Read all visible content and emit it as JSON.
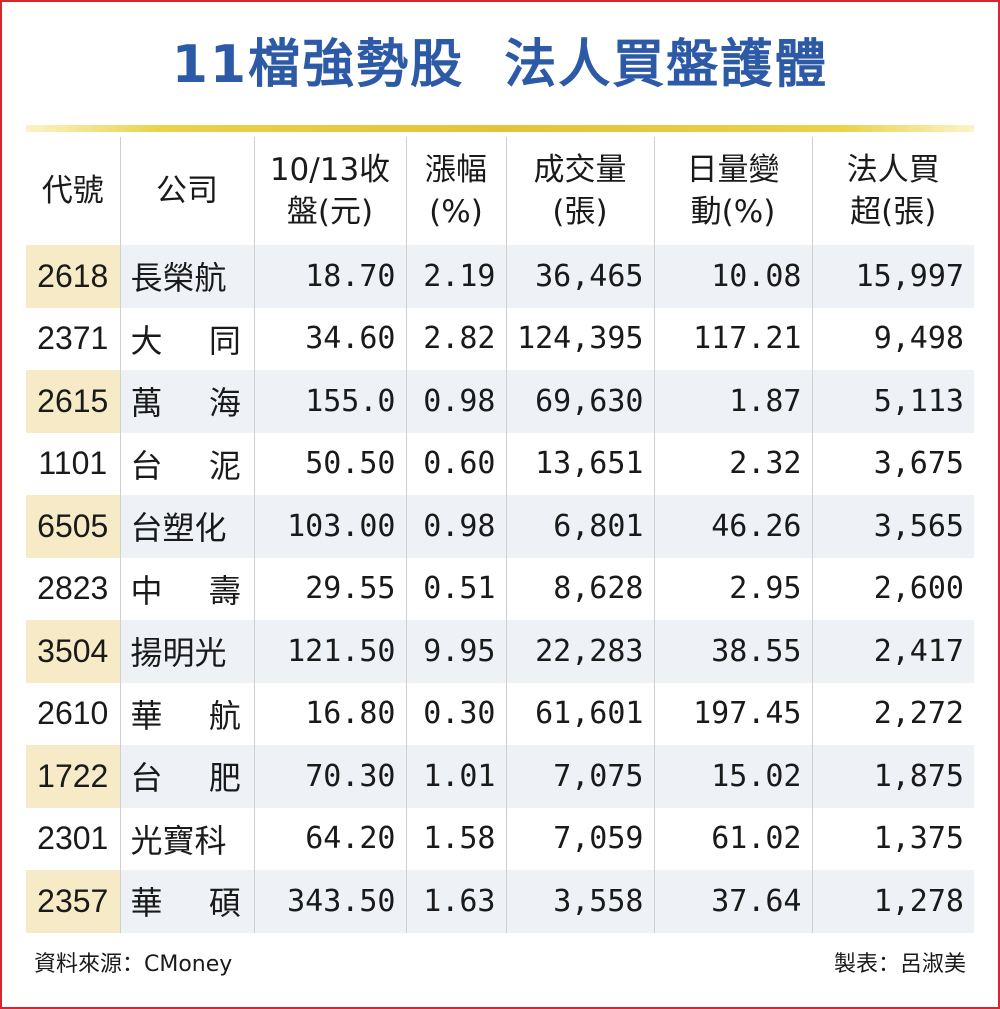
{
  "title": "11檔強勢股  法人買盤護體",
  "headers": [
    "代號",
    "公司",
    "10/13收\n盤(元)",
    "漲幅\n(%)",
    "成交量\n(張)",
    "日量變\n動(%)",
    "法人買\n超(張)"
  ],
  "chart_data": {
    "type": "table",
    "title": "11檔強勢股  法人買盤護體",
    "columns": [
      "代號",
      "公司",
      "10/13收盤(元)",
      "漲幅(%)",
      "成交量(張)",
      "日量變動(%)",
      "法人買超(張)"
    ],
    "rows": [
      {
        "code": "2618",
        "company": "長榮航",
        "close": "18.70",
        "change": "2.19",
        "volume": "36,465",
        "vol_change": "10.08",
        "net_buy": "15,997"
      },
      {
        "code": "2371",
        "company": "大同",
        "close": "34.60",
        "change": "2.82",
        "volume": "124,395",
        "vol_change": "117.21",
        "net_buy": "9,498"
      },
      {
        "code": "2615",
        "company": "萬海",
        "close": "155.0",
        "change": "0.98",
        "volume": "69,630",
        "vol_change": "1.87",
        "net_buy": "5,113"
      },
      {
        "code": "1101",
        "company": "台泥",
        "close": "50.50",
        "change": "0.60",
        "volume": "13,651",
        "vol_change": "2.32",
        "net_buy": "3,675"
      },
      {
        "code": "6505",
        "company": "台塑化",
        "close": "103.00",
        "change": "0.98",
        "volume": "6,801",
        "vol_change": "46.26",
        "net_buy": "3,565"
      },
      {
        "code": "2823",
        "company": "中壽",
        "close": "29.55",
        "change": "0.51",
        "volume": "8,628",
        "vol_change": "2.95",
        "net_buy": "2,600"
      },
      {
        "code": "3504",
        "company": "揚明光",
        "close": "121.50",
        "change": "9.95",
        "volume": "22,283",
        "vol_change": "38.55",
        "net_buy": "2,417"
      },
      {
        "code": "2610",
        "company": "華航",
        "close": "16.80",
        "change": "0.30",
        "volume": "61,601",
        "vol_change": "197.45",
        "net_buy": "2,272"
      },
      {
        "code": "1722",
        "company": "台肥",
        "close": "70.30",
        "change": "1.01",
        "volume": "7,075",
        "vol_change": "15.02",
        "net_buy": "1,875"
      },
      {
        "code": "2301",
        "company": "光寶科",
        "close": "64.20",
        "change": "1.58",
        "volume": "7,059",
        "vol_change": "61.02",
        "net_buy": "1,375"
      },
      {
        "code": "2357",
        "company": "華碩",
        "close": "343.50",
        "change": "1.63",
        "volume": "3,558",
        "vol_change": "37.64",
        "net_buy": "1,278"
      }
    ]
  },
  "footer": {
    "source": "資料來源：CMoney",
    "author": "製表：呂淑美"
  },
  "colors": {
    "title": "#2d5aa6",
    "rule": "#e4c33a",
    "code_highlight": "#f6ebc6",
    "row_alt": "#eef2f7",
    "border": "#d8262e"
  }
}
